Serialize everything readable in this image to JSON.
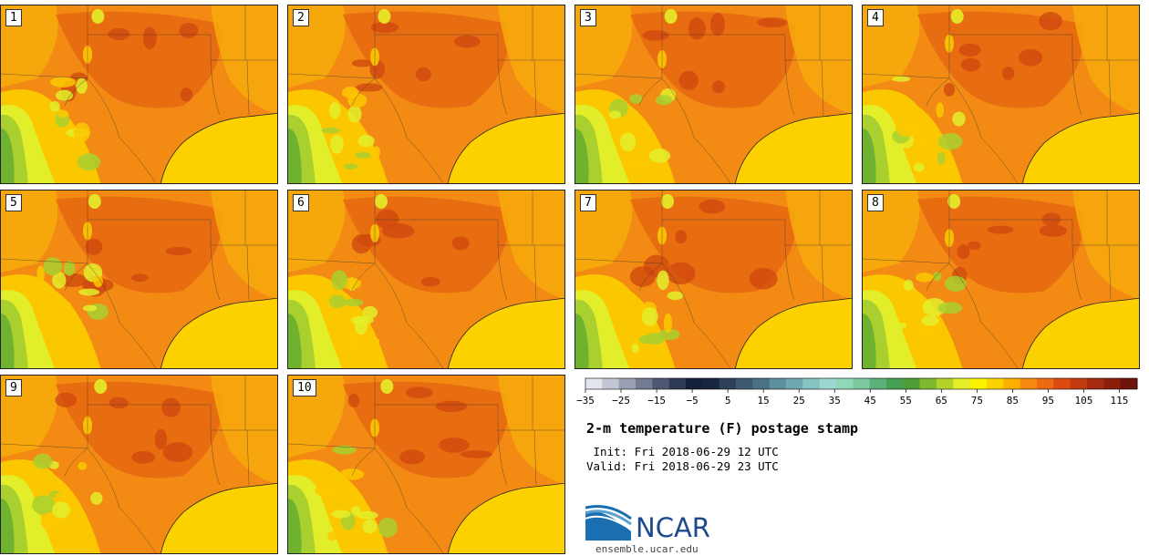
{
  "title": "2-m temperature (F) postage stamp",
  "init_line": "Init: Fri 2018-06-29 12 UTC",
  "valid_line": "Valid: Fri 2018-06-29 23 UTC",
  "logo": {
    "name": "NCAR",
    "url": "ensemble.ucar.edu"
  },
  "members": [
    "1",
    "2",
    "3",
    "4",
    "5",
    "6",
    "7",
    "8",
    "9",
    "10"
  ],
  "colorbar": {
    "min": -35,
    "max": 120,
    "step": 5,
    "tick_labels": [
      "−35",
      "−25",
      "−15",
      "−5",
      "5",
      "15",
      "25",
      "35",
      "45",
      "55",
      "65",
      "75",
      "85",
      "95",
      "105",
      "115"
    ],
    "colors": [
      "#e4e6ee",
      "#c3c6d4",
      "#9aa0b3",
      "#737b92",
      "#4e5872",
      "#2f3a55",
      "#15203a",
      "#18263f",
      "#2d4159",
      "#3e5a70",
      "#4a7286",
      "#5d8f9d",
      "#6fa9b0",
      "#86c3c3",
      "#9cd8cf",
      "#8fd8b8",
      "#7cc8a0",
      "#5cb07a",
      "#46a052",
      "#4f9e35",
      "#7fb92f",
      "#b3d32a",
      "#e6ee2a",
      "#fcf300",
      "#fcd200",
      "#fbb000",
      "#f68a10",
      "#ee6a12",
      "#dd4a12",
      "#c23a10",
      "#a62a0e",
      "#8c1e0c",
      "#6e140a"
    ]
  },
  "map_colors": {
    "gulf": "#fdd000",
    "hot": "#f28a14",
    "hotter": "#e6660f",
    "hottest": "#cf4a0e",
    "warm": "#f6a70c",
    "mild": "#fbc800",
    "cool1": "#e3ee2a",
    "cool2": "#a9d02f",
    "cool3": "#6fb22f",
    "cool4": "#4f9a35"
  }
}
